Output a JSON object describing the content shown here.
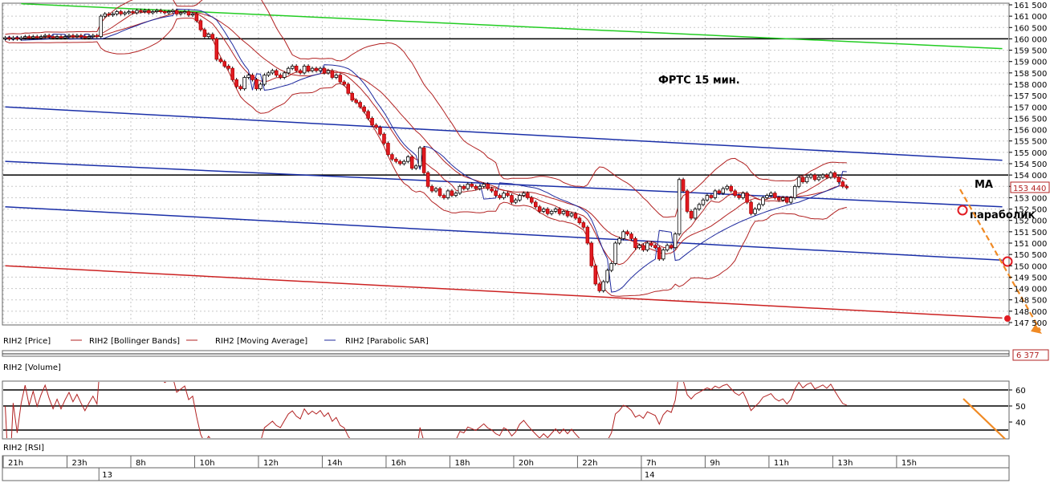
{
  "chart_data": {
    "type": "candlestick",
    "title": "ФРТС   15 мин.",
    "instrument": "RIH2",
    "annotations": {
      "ma": "MA",
      "sar": "параболик"
    },
    "legend": [
      {
        "name": "RIH2 [Price]",
        "color": "#000000"
      },
      {
        "name": "RIH2 [Bollinger Bands]",
        "color": "#b22222"
      },
      {
        "name": "RIH2 [Moving Average]",
        "color": "#b22222"
      },
      {
        "name": "RIH2 [Parabolic SAR]",
        "color": "#1f2a9e"
      }
    ],
    "price_axis": {
      "min": 147500,
      "max": 161500,
      "step": 500,
      "last_price": "153 440",
      "last_price_value": 153440,
      "ticks": [
        "161 500",
        "161 000",
        "160 500",
        "160 000",
        "159 500",
        "159 000",
        "158 500",
        "158 000",
        "157 500",
        "157 000",
        "156 500",
        "156 000",
        "155 500",
        "155 000",
        "154 500",
        "154 000",
        "153 500",
        "153 000",
        "152 500",
        "152 000",
        "151 500",
        "151 000",
        "150 500",
        "150 000",
        "149 500",
        "149 000",
        "148 500",
        "148 000",
        "147 500"
      ]
    },
    "horizontal_levels": [
      160000,
      154000
    ],
    "trend_lines": [
      {
        "name": "green-resistance",
        "color": "#22cc22",
        "from": [
          4,
          161550
        ],
        "to": [
          250,
          159570
        ]
      },
      {
        "name": "blue-channel-top",
        "color": "#1a2fa8",
        "from": [
          0,
          157000
        ],
        "to": [
          250,
          154650
        ]
      },
      {
        "name": "blue-channel-mid",
        "color": "#1a2fa8",
        "from": [
          0,
          154600
        ],
        "to": [
          250,
          152600
        ]
      },
      {
        "name": "blue-channel-low",
        "color": "#1a2fa8",
        "from": [
          0,
          152600
        ],
        "to": [
          250,
          150250
        ]
      },
      {
        "name": "red-support",
        "color": "#cc2222",
        "from": [
          0,
          150000
        ],
        "to": [
          250,
          147700
        ]
      }
    ],
    "time_axis": {
      "labels": [
        {
          "bar": 0,
          "text": "21h"
        },
        {
          "bar": 16,
          "text": "23h"
        },
        {
          "bar": 32,
          "text": "8h"
        },
        {
          "bar": 48,
          "text": "10h"
        },
        {
          "bar": 64,
          "text": "12h"
        },
        {
          "bar": 80,
          "text": "14h"
        },
        {
          "bar": 96,
          "text": "16h"
        },
        {
          "bar": 112,
          "text": "18h"
        },
        {
          "bar": 128,
          "text": "20h"
        },
        {
          "bar": 144,
          "text": "22h"
        },
        {
          "bar": 160,
          "text": "7h"
        },
        {
          "bar": 176,
          "text": "9h"
        },
        {
          "bar": 192,
          "text": "11h"
        },
        {
          "bar": 208,
          "text": "13h"
        },
        {
          "bar": 224,
          "text": "15h"
        }
      ],
      "dates": [
        {
          "bar": 24,
          "text": "13"
        },
        {
          "bar": 160,
          "text": "14"
        }
      ]
    },
    "volume_panel": {
      "title": "RIH2 [Volume]",
      "last": "6 377"
    },
    "rsi_panel": {
      "title": "RIH2 [RSI]",
      "ticks": [
        "60",
        "50",
        "40"
      ],
      "levels": [
        60,
        50,
        35
      ]
    },
    "candles": [
      [
        160000,
        160050
      ],
      [
        160050,
        160000
      ],
      [
        160000,
        160050
      ],
      [
        160050,
        160000
      ],
      [
        160000,
        160050
      ],
      [
        160050,
        160100
      ],
      [
        160100,
        160050
      ],
      [
        160050,
        160100
      ],
      [
        160100,
        160050
      ],
      [
        160050,
        160100
      ],
      [
        160100,
        160150
      ],
      [
        160150,
        160100
      ],
      [
        160100,
        160050
      ],
      [
        160050,
        160100
      ],
      [
        160100,
        160050
      ],
      [
        160050,
        160100
      ],
      [
        160100,
        160150
      ],
      [
        160150,
        160100
      ],
      [
        160100,
        160150
      ],
      [
        160150,
        160100
      ],
      [
        160100,
        160050
      ],
      [
        160050,
        160100
      ],
      [
        160100,
        160150
      ],
      [
        160150,
        160100
      ],
      [
        160100,
        161000
      ],
      [
        161000,
        161100
      ],
      [
        161100,
        161050
      ],
      [
        161050,
        161100
      ],
      [
        161100,
        161200
      ],
      [
        161200,
        161100
      ],
      [
        161100,
        161150
      ],
      [
        161150,
        161200
      ],
      [
        161200,
        161150
      ],
      [
        161150,
        161250
      ],
      [
        161250,
        161200
      ],
      [
        161200,
        161250
      ],
      [
        161250,
        161150
      ],
      [
        161150,
        161200
      ],
      [
        161200,
        161250
      ],
      [
        161250,
        161200
      ],
      [
        161200,
        161150
      ],
      [
        161150,
        161200
      ],
      [
        161200,
        161250
      ],
      [
        161250,
        161100
      ],
      [
        161100,
        161150
      ],
      [
        161150,
        161200
      ],
      [
        161200,
        161050
      ],
      [
        161050,
        161100
      ],
      [
        161100,
        160800
      ],
      [
        160800,
        160400
      ],
      [
        160400,
        160100
      ],
      [
        160100,
        160200
      ],
      [
        160200,
        160000
      ],
      [
        160000,
        159100
      ],
      [
        159100,
        159000
      ],
      [
        159000,
        158800
      ],
      [
        158800,
        158700
      ],
      [
        158700,
        158200
      ],
      [
        158200,
        157900
      ],
      [
        157900,
        157800
      ],
      [
        157800,
        158300
      ],
      [
        158300,
        158400
      ],
      [
        158400,
        158200
      ],
      [
        158200,
        157800
      ],
      [
        157800,
        158000
      ],
      [
        158000,
        158400
      ],
      [
        158400,
        158500
      ],
      [
        158500,
        158600
      ],
      [
        158600,
        158400
      ],
      [
        158400,
        158300
      ],
      [
        158300,
        158500
      ],
      [
        158500,
        158700
      ],
      [
        158700,
        158800
      ],
      [
        158800,
        158600
      ],
      [
        158600,
        158500
      ],
      [
        158500,
        158800
      ],
      [
        158800,
        158600
      ],
      [
        158600,
        158700
      ],
      [
        158700,
        158600
      ],
      [
        158600,
        158700
      ],
      [
        158700,
        158500
      ],
      [
        158500,
        158600
      ],
      [
        158600,
        158300
      ],
      [
        158300,
        158400
      ],
      [
        158400,
        158100
      ],
      [
        158100,
        158000
      ],
      [
        158000,
        157600
      ],
      [
        157600,
        157300
      ],
      [
        157300,
        157200
      ],
      [
        157200,
        157000
      ],
      [
        157000,
        156800
      ],
      [
        156800,
        156500
      ],
      [
        156500,
        156200
      ],
      [
        156200,
        156100
      ],
      [
        156100,
        155800
      ],
      [
        155800,
        155400
      ],
      [
        155400,
        154900
      ],
      [
        154900,
        154700
      ],
      [
        154700,
        154600
      ],
      [
        154600,
        154500
      ],
      [
        154500,
        154600
      ],
      [
        154600,
        154800
      ],
      [
        154800,
        154300
      ],
      [
        154300,
        154400
      ],
      [
        154400,
        155200
      ],
      [
        155200,
        154100
      ],
      [
        154100,
        153500
      ],
      [
        153500,
        153300
      ],
      [
        153300,
        153400
      ],
      [
        153400,
        153100
      ],
      [
        153100,
        153000
      ],
      [
        153000,
        153300
      ],
      [
        153300,
        153100
      ],
      [
        153100,
        153200
      ],
      [
        153200,
        153500
      ],
      [
        153500,
        153400
      ],
      [
        153400,
        153600
      ],
      [
        153600,
        153500
      ],
      [
        153500,
        153400
      ],
      [
        153400,
        153500
      ],
      [
        153500,
        153600
      ],
      [
        153600,
        153400
      ],
      [
        153400,
        153300
      ],
      [
        153300,
        153100
      ],
      [
        153100,
        153000
      ],
      [
        153000,
        153200
      ],
      [
        153200,
        153100
      ],
      [
        153100,
        152800
      ],
      [
        152800,
        152900
      ],
      [
        152900,
        153100
      ],
      [
        153100,
        153200
      ],
      [
        153200,
        153000
      ],
      [
        153000,
        152800
      ],
      [
        152800,
        152600
      ],
      [
        152600,
        152400
      ],
      [
        152400,
        152500
      ],
      [
        152500,
        152300
      ],
      [
        152300,
        152400
      ],
      [
        152400,
        152500
      ],
      [
        152500,
        152300
      ],
      [
        152300,
        152400
      ],
      [
        152400,
        152200
      ],
      [
        152200,
        152300
      ],
      [
        152300,
        152100
      ],
      [
        152100,
        151900
      ],
      [
        151900,
        151700
      ],
      [
        151700,
        151000
      ],
      [
        151000,
        150000
      ],
      [
        150000,
        149200
      ],
      [
        149200,
        148900
      ],
      [
        148900,
        149300
      ],
      [
        149300,
        149800
      ],
      [
        149800,
        150100
      ],
      [
        150100,
        151000
      ],
      [
        151000,
        151200
      ],
      [
        151200,
        151500
      ],
      [
        151500,
        151400
      ],
      [
        151400,
        151200
      ],
      [
        151200,
        150800
      ],
      [
        150800,
        150900
      ],
      [
        150900,
        150700
      ],
      [
        150700,
        151000
      ],
      [
        151000,
        150900
      ],
      [
        150900,
        150800
      ],
      [
        150800,
        150300
      ],
      [
        150300,
        150700
      ],
      [
        150700,
        150900
      ],
      [
        150900,
        150800
      ],
      [
        150800,
        151400
      ],
      [
        151400,
        153800
      ],
      [
        153800,
        153300
      ],
      [
        153300,
        152400
      ],
      [
        152400,
        152100
      ],
      [
        152100,
        152500
      ],
      [
        152500,
        152700
      ],
      [
        152700,
        152900
      ],
      [
        152900,
        153100
      ],
      [
        153100,
        153000
      ],
      [
        153000,
        153300
      ],
      [
        153300,
        153200
      ],
      [
        153200,
        153400
      ],
      [
        153400,
        153500
      ],
      [
        153500,
        153300
      ],
      [
        153300,
        153100
      ],
      [
        153100,
        153000
      ],
      [
        153000,
        153200
      ],
      [
        153200,
        152800
      ],
      [
        152800,
        152300
      ],
      [
        152300,
        152500
      ],
      [
        152500,
        152700
      ],
      [
        152700,
        153000
      ],
      [
        153000,
        153100
      ],
      [
        153100,
        153200
      ],
      [
        153200,
        153000
      ],
      [
        153000,
        152900
      ],
      [
        152900,
        153000
      ],
      [
        153000,
        152800
      ],
      [
        152800,
        153000
      ],
      [
        153000,
        153500
      ],
      [
        153500,
        153900
      ],
      [
        153900,
        153700
      ],
      [
        153700,
        153900
      ],
      [
        153900,
        154000
      ],
      [
        154000,
        153800
      ],
      [
        153800,
        153900
      ],
      [
        153900,
        154000
      ],
      [
        154000,
        153900
      ],
      [
        153900,
        154100
      ],
      [
        154100,
        153900
      ],
      [
        153900,
        153700
      ],
      [
        153700,
        153500
      ],
      [
        153500,
        153440
      ]
    ]
  }
}
